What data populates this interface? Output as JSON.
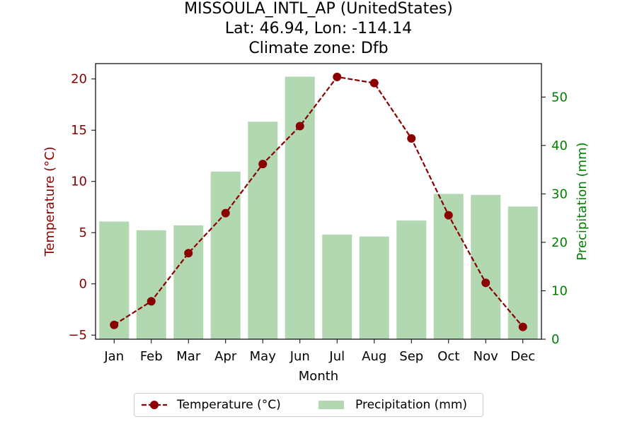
{
  "title": {
    "line1": "MISSOULA_INTL_AP (UnitedStates)",
    "line2": "Lat: 46.94, Lon: -114.14",
    "line3": "Climate zone: Dfb"
  },
  "colors": {
    "temperature": "#8b0000",
    "precipitation_bar": "#b2d8b2",
    "precipitation_axis": "#008000"
  },
  "legend": {
    "temperature_label": "Temperature (°C)",
    "precipitation_label": "Precipitation (mm)"
  },
  "chart_data": {
    "type": "bar+line",
    "categories": [
      "Jan",
      "Feb",
      "Mar",
      "Apr",
      "May",
      "Jun",
      "Jul",
      "Aug",
      "Sep",
      "Oct",
      "Nov",
      "Dec"
    ],
    "xlabel": "Month",
    "series": [
      {
        "name": "Temperature (°C)",
        "type": "line",
        "axis": "left",
        "style": "dashed with circle markers",
        "values": [
          -4.0,
          -1.7,
          3.0,
          6.9,
          11.7,
          15.4,
          20.2,
          19.6,
          14.2,
          6.7,
          0.1,
          -4.2
        ]
      },
      {
        "name": "Precipitation (mm)",
        "type": "bar",
        "axis": "right",
        "values": [
          24.3,
          22.5,
          23.5,
          34.6,
          44.9,
          54.2,
          21.6,
          21.2,
          24.5,
          30.0,
          29.8,
          27.4
        ]
      }
    ],
    "left_axis": {
      "label": "Temperature (°C)",
      "ylim": [
        -5.4,
        21.5
      ],
      "ticks": [
        -5,
        0,
        5,
        10,
        15,
        20
      ]
    },
    "right_axis": {
      "label": "Precipitation (mm)",
      "ylim": [
        0,
        56.9
      ],
      "ticks": [
        0,
        10,
        20,
        30,
        40,
        50
      ]
    },
    "grid": false,
    "legend_position": "bottom-center"
  }
}
